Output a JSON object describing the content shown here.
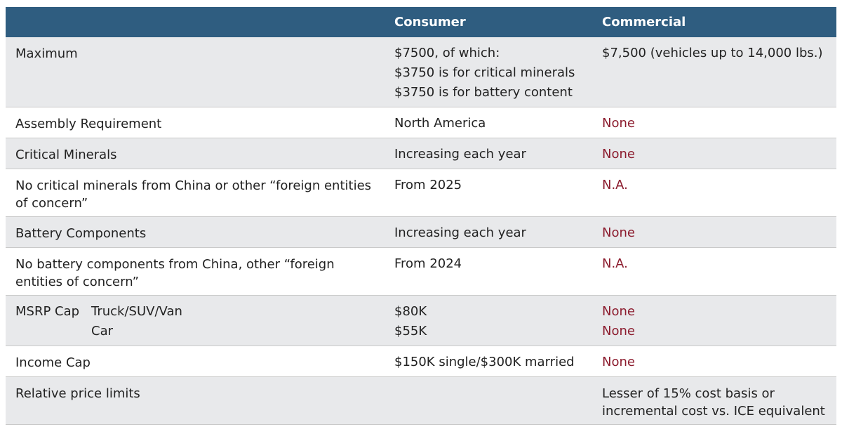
{
  "table": {
    "columns": [
      "Consumer",
      "Commercial"
    ],
    "header_color": "#2f5d80",
    "alt_row_color": "#e8e9eb",
    "rows": [
      {
        "label": "Maximum",
        "consumer": [
          "$7500, of which:",
          "$3750 is for critical minerals",
          "$3750 is for battery content"
        ],
        "commercial": [
          "$7,500 (vehicles up to 14,000 lbs.)"
        ]
      },
      {
        "label": "Assembly Requirement",
        "consumer": [
          "North America"
        ],
        "commercial": [
          "None"
        ],
        "commercial_color": "#8c1c2e"
      },
      {
        "label": "Critical Minerals",
        "consumer": [
          "Increasing each year"
        ],
        "commercial": [
          "None"
        ],
        "commercial_color": "#8c1c2e"
      },
      {
        "label": "No critical minerals from China or other “foreign entities of concern”",
        "consumer": [
          "From 2025"
        ],
        "commercial": [
          "N.A."
        ],
        "commercial_color": "#8c1c2e"
      },
      {
        "label": "Battery Components",
        "consumer": [
          "Increasing each year"
        ],
        "commercial": [
          "None"
        ],
        "commercial_color": "#8c1c2e"
      },
      {
        "label": "No battery components from China, other “foreign entities of concern”",
        "consumer": [
          "From 2024"
        ],
        "commercial": [
          "N.A."
        ],
        "commercial_color": "#8c1c2e"
      },
      {
        "label": "MSRP Cap",
        "sublabels": [
          "Truck/SUV/Van",
          "Car"
        ],
        "consumer": [
          "$80K",
          "$55K"
        ],
        "commercial": [
          "None",
          "None"
        ],
        "commercial_color": "#8c1c2e"
      },
      {
        "label": "Income Cap",
        "consumer": [
          "$150K single/$300K married"
        ],
        "commercial": [
          "None"
        ],
        "commercial_color": "#8c1c2e"
      },
      {
        "label": "Relative price limits",
        "commercial": [
          "Lesser of 15% cost basis or incremental cost vs. ICE equivalent"
        ]
      }
    ]
  }
}
